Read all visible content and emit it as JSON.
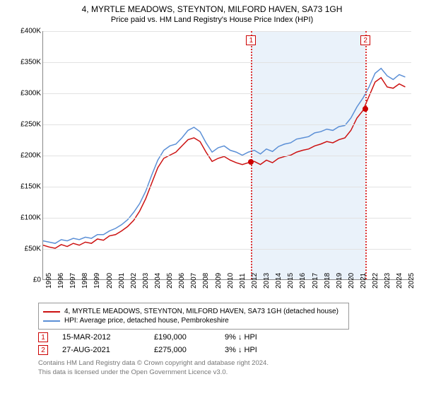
{
  "title": {
    "line1": "4, MYRTLE MEADOWS, STEYNTON, MILFORD HAVEN, SA73 1GH",
    "line2": "Price paid vs. HM Land Registry's House Price Index (HPI)"
  },
  "chart": {
    "type": "line",
    "background_color": "#ffffff",
    "grid_color": "#e2e2e2",
    "axis_color": "#888888",
    "shaded_region_color": "#eaf2fa",
    "marker_border_color": "#cc0000",
    "dot_color": "#cc0000",
    "x": {
      "min": 1995,
      "max": 2025.5,
      "ticks": [
        1995,
        1996,
        1997,
        1998,
        1999,
        2000,
        2001,
        2002,
        2003,
        2004,
        2005,
        2006,
        2007,
        2008,
        2009,
        2010,
        2011,
        2012,
        2013,
        2014,
        2015,
        2016,
        2017,
        2018,
        2019,
        2020,
        2021,
        2022,
        2023,
        2024,
        2025
      ],
      "label_fontsize": 10
    },
    "y": {
      "min": 0,
      "max": 400000,
      "ticks": [
        0,
        50000,
        100000,
        150000,
        200000,
        250000,
        300000,
        350000,
        400000
      ],
      "tick_labels": [
        "£0",
        "£50K",
        "£100K",
        "£150K",
        "£200K",
        "£250K",
        "£300K",
        "£350K",
        "£400K"
      ],
      "label_fontsize": 10
    },
    "shaded_region": {
      "x_start": 2012.2,
      "x_end": 2021.65
    },
    "markers": [
      {
        "n": "1",
        "x": 2012.2,
        "y_dot": 190000
      },
      {
        "n": "2",
        "x": 2021.65,
        "y_dot": 275000
      }
    ],
    "series": [
      {
        "name": "subject",
        "color": "#cc1111",
        "width": 1.5,
        "label": "4, MYRTLE MEADOWS, STEYNTON, MILFORD HAVEN, SA73 1GH (detached house)",
        "points": [
          [
            1995,
            55000
          ],
          [
            1995.5,
            52000
          ],
          [
            1996,
            50000
          ],
          [
            1996.5,
            56000
          ],
          [
            1997,
            53000
          ],
          [
            1997.5,
            58000
          ],
          [
            1998,
            55000
          ],
          [
            1998.5,
            60000
          ],
          [
            1999,
            58000
          ],
          [
            1999.5,
            65000
          ],
          [
            2000,
            63000
          ],
          [
            2000.5,
            70000
          ],
          [
            2001,
            72000
          ],
          [
            2001.5,
            78000
          ],
          [
            2002,
            85000
          ],
          [
            2002.5,
            95000
          ],
          [
            2003,
            110000
          ],
          [
            2003.5,
            130000
          ],
          [
            2004,
            155000
          ],
          [
            2004.5,
            180000
          ],
          [
            2005,
            195000
          ],
          [
            2005.5,
            200000
          ],
          [
            2006,
            205000
          ],
          [
            2006.5,
            215000
          ],
          [
            2007,
            225000
          ],
          [
            2007.5,
            228000
          ],
          [
            2008,
            222000
          ],
          [
            2008.5,
            205000
          ],
          [
            2009,
            190000
          ],
          [
            2009.5,
            195000
          ],
          [
            2010,
            198000
          ],
          [
            2010.5,
            192000
          ],
          [
            2011,
            188000
          ],
          [
            2011.5,
            185000
          ],
          [
            2012,
            188000
          ],
          [
            2012.5,
            190000
          ],
          [
            2013,
            185000
          ],
          [
            2013.5,
            192000
          ],
          [
            2014,
            188000
          ],
          [
            2014.5,
            195000
          ],
          [
            2015,
            198000
          ],
          [
            2015.5,
            200000
          ],
          [
            2016,
            205000
          ],
          [
            2016.5,
            208000
          ],
          [
            2017,
            210000
          ],
          [
            2017.5,
            215000
          ],
          [
            2018,
            218000
          ],
          [
            2018.5,
            222000
          ],
          [
            2019,
            220000
          ],
          [
            2019.5,
            225000
          ],
          [
            2020,
            228000
          ],
          [
            2020.5,
            240000
          ],
          [
            2021,
            260000
          ],
          [
            2021.5,
            272000
          ],
          [
            2022,
            295000
          ],
          [
            2022.5,
            318000
          ],
          [
            2023,
            325000
          ],
          [
            2023.5,
            310000
          ],
          [
            2024,
            308000
          ],
          [
            2024.5,
            315000
          ],
          [
            2025,
            310000
          ]
        ]
      },
      {
        "name": "hpi",
        "color": "#5b8fd6",
        "width": 1.5,
        "label": "HPI: Average price, detached house, Pembrokeshire",
        "points": [
          [
            1995,
            62000
          ],
          [
            1995.5,
            60000
          ],
          [
            1996,
            58000
          ],
          [
            1996.5,
            64000
          ],
          [
            1997,
            62000
          ],
          [
            1997.5,
            66000
          ],
          [
            1998,
            64000
          ],
          [
            1998.5,
            68000
          ],
          [
            1999,
            66000
          ],
          [
            1999.5,
            72000
          ],
          [
            2000,
            72000
          ],
          [
            2000.5,
            78000
          ],
          [
            2001,
            82000
          ],
          [
            2001.5,
            88000
          ],
          [
            2002,
            96000
          ],
          [
            2002.5,
            108000
          ],
          [
            2003,
            122000
          ],
          [
            2003.5,
            142000
          ],
          [
            2004,
            168000
          ],
          [
            2004.5,
            192000
          ],
          [
            2005,
            208000
          ],
          [
            2005.5,
            215000
          ],
          [
            2006,
            218000
          ],
          [
            2006.5,
            228000
          ],
          [
            2007,
            240000
          ],
          [
            2007.5,
            245000
          ],
          [
            2008,
            238000
          ],
          [
            2008.5,
            220000
          ],
          [
            2009,
            205000
          ],
          [
            2009.5,
            212000
          ],
          [
            2010,
            215000
          ],
          [
            2010.5,
            208000
          ],
          [
            2011,
            205000
          ],
          [
            2011.5,
            200000
          ],
          [
            2012,
            205000
          ],
          [
            2012.5,
            208000
          ],
          [
            2013,
            202000
          ],
          [
            2013.5,
            210000
          ],
          [
            2014,
            206000
          ],
          [
            2014.5,
            214000
          ],
          [
            2015,
            218000
          ],
          [
            2015.5,
            220000
          ],
          [
            2016,
            226000
          ],
          [
            2016.5,
            228000
          ],
          [
            2017,
            230000
          ],
          [
            2017.5,
            236000
          ],
          [
            2018,
            238000
          ],
          [
            2018.5,
            242000
          ],
          [
            2019,
            240000
          ],
          [
            2019.5,
            246000
          ],
          [
            2020,
            248000
          ],
          [
            2020.5,
            260000
          ],
          [
            2021,
            278000
          ],
          [
            2021.5,
            292000
          ],
          [
            2022,
            310000
          ],
          [
            2022.5,
            332000
          ],
          [
            2023,
            340000
          ],
          [
            2023.5,
            328000
          ],
          [
            2024,
            322000
          ],
          [
            2024.5,
            330000
          ],
          [
            2025,
            326000
          ]
        ]
      }
    ]
  },
  "legend": {
    "border_color": "#999999"
  },
  "sales": [
    {
      "n": "1",
      "date": "15-MAR-2012",
      "price": "£190,000",
      "delta": "9% ↓ HPI"
    },
    {
      "n": "2",
      "date": "27-AUG-2021",
      "price": "£275,000",
      "delta": "3% ↓ HPI"
    }
  ],
  "footer": {
    "line1": "Contains HM Land Registry data © Crown copyright and database right 2024.",
    "line2": "This data is licensed under the Open Government Licence v3.0."
  }
}
